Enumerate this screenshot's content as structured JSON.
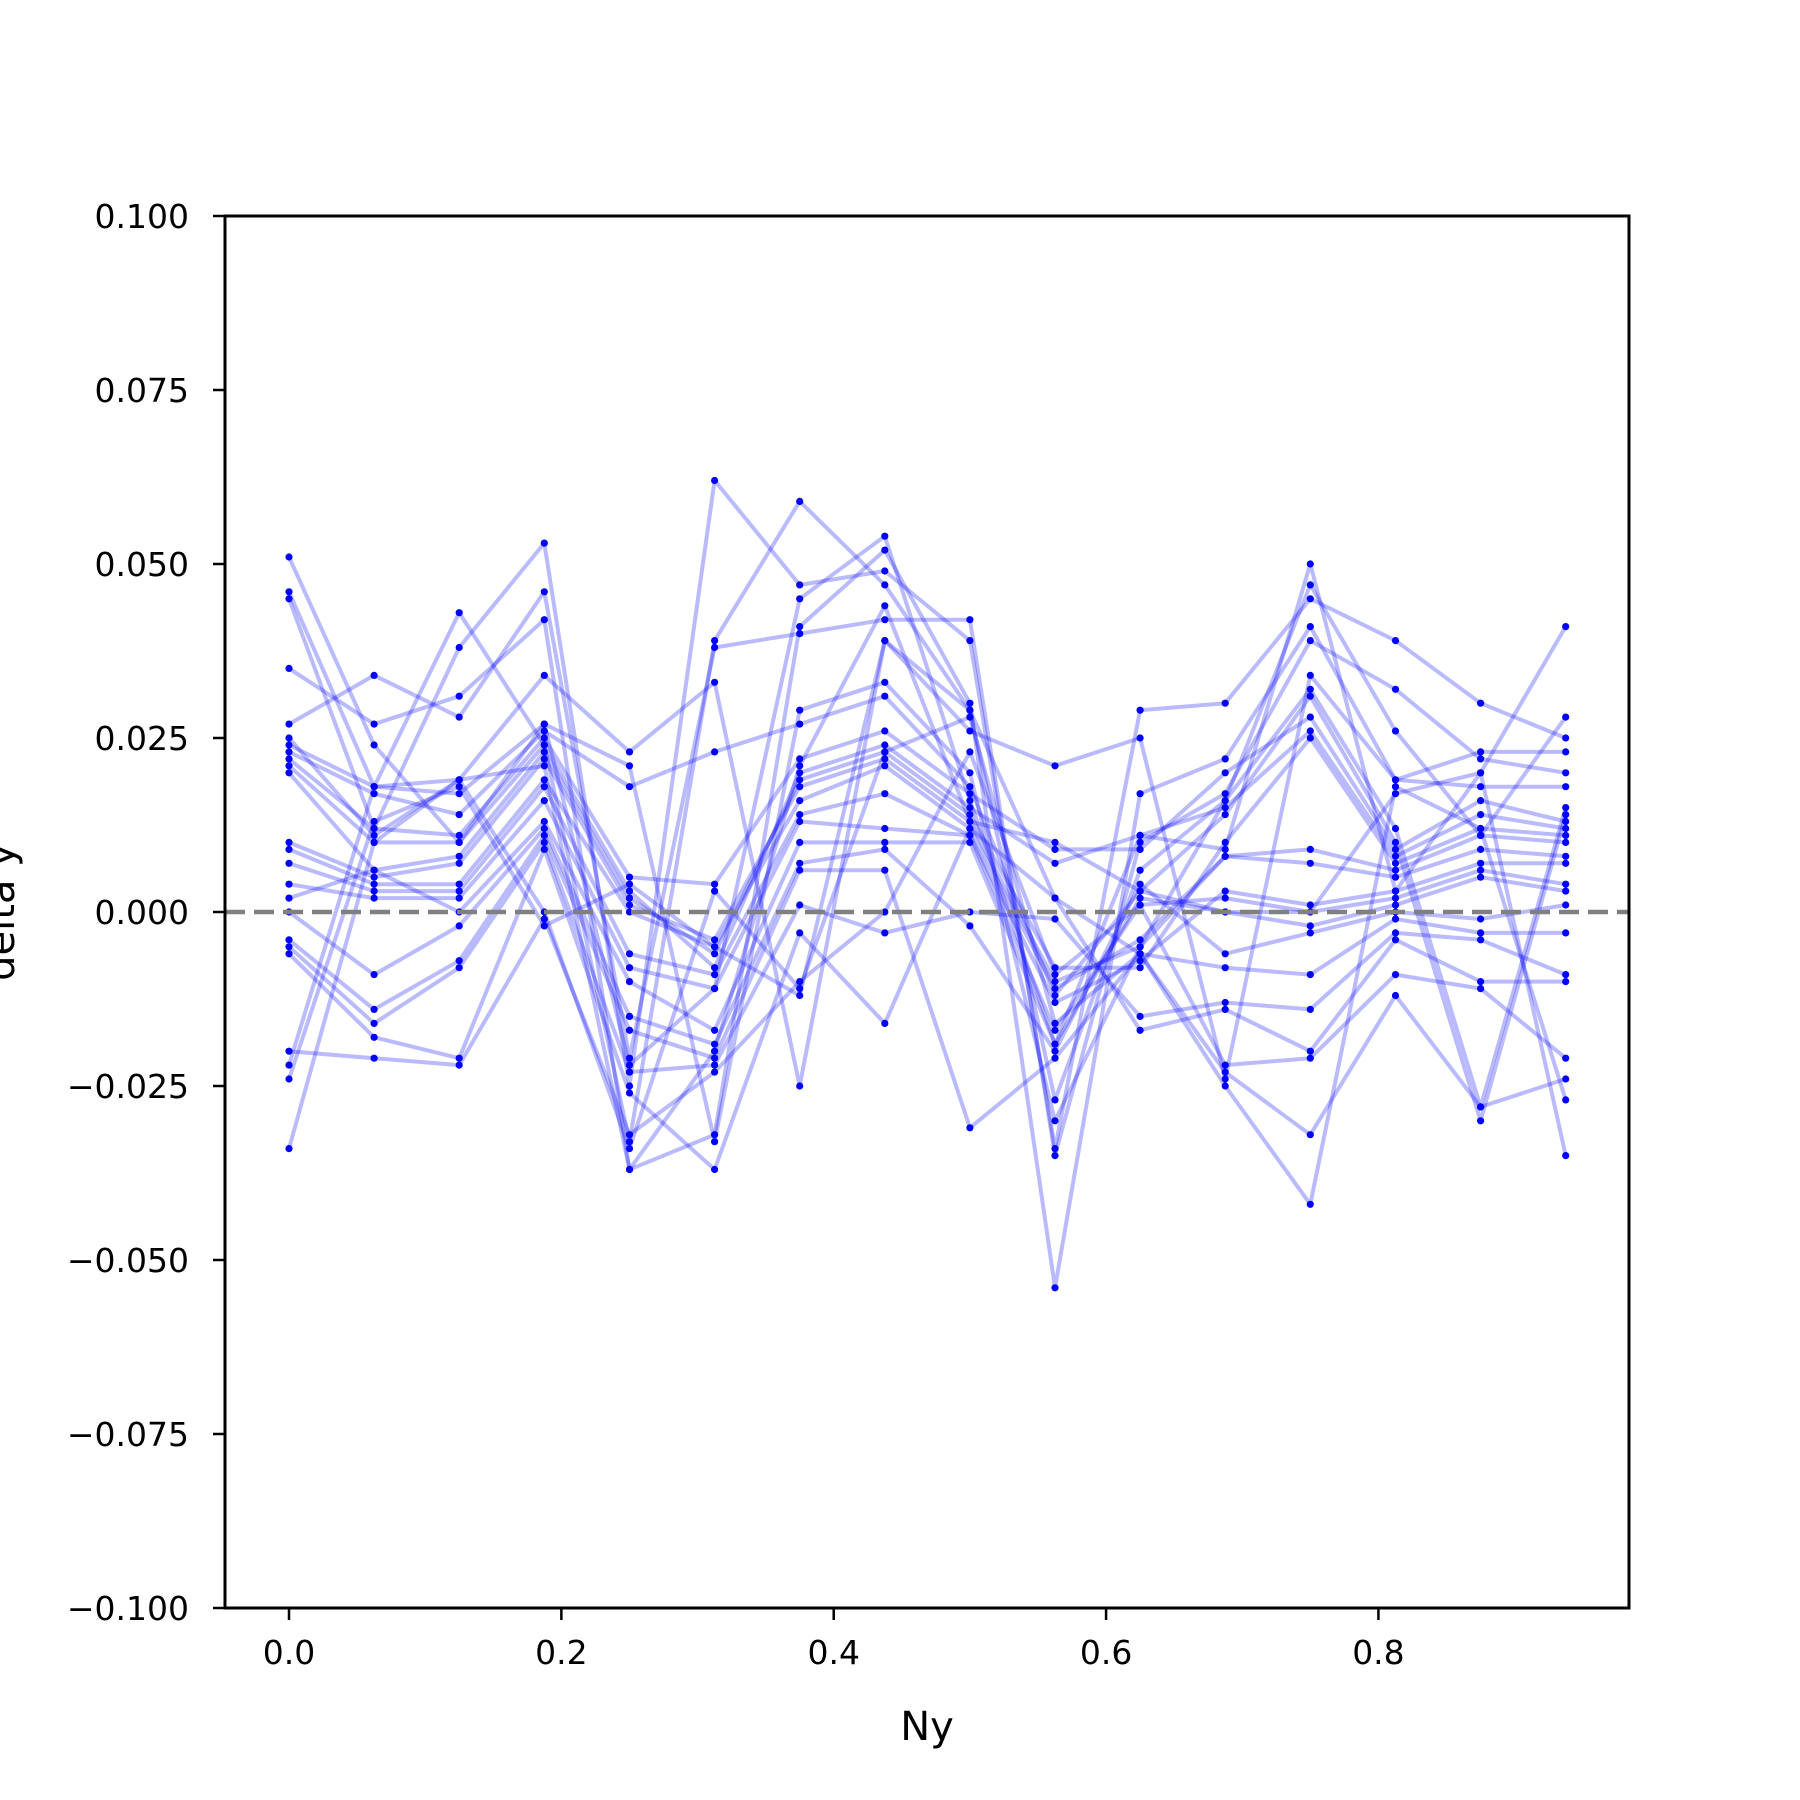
{
  "chart_data": {
    "type": "line",
    "title": "",
    "xlabel": "Ny",
    "ylabel": "delta y",
    "xlim": [
      -0.047,
      0.984
    ],
    "ylim": [
      -0.1,
      0.1
    ],
    "x_ticks": [
      0.0,
      0.2,
      0.4,
      0.6,
      0.8
    ],
    "x_tick_labels": [
      "0.0",
      "0.2",
      "0.4",
      "0.6",
      "0.8"
    ],
    "y_ticks": [
      -0.1,
      -0.075,
      -0.05,
      -0.025,
      0.0,
      0.025,
      0.05,
      0.075,
      0.1
    ],
    "y_tick_labels": [
      "−0.100",
      "−0.075",
      "−0.050",
      "−0.025",
      "0.000",
      "0.025",
      "0.050",
      "0.075",
      "0.100"
    ],
    "grid": false,
    "reference_line": {
      "y": 0.0,
      "style": "dashed",
      "color": "#808080"
    },
    "series_color": "#0000ff",
    "x": [
      0.0,
      0.0625,
      0.125,
      0.1875,
      0.25,
      0.3125,
      0.375,
      0.4375,
      0.5,
      0.5625,
      0.625,
      0.6875,
      0.75,
      0.8125,
      0.875,
      0.9375
    ],
    "series": [
      {
        "values": [
          0.051,
          0.024,
          0.01,
          0.027,
          -0.022,
          -0.011,
          0.045,
          0.054,
          0.016,
          -0.019,
          0.011,
          0.009,
          0.05,
          0.003,
          0.02,
          0.041
        ]
      },
      {
        "values": [
          0.046,
          0.018,
          0.043,
          0.024,
          -0.033,
          0.039,
          0.059,
          0.047,
          0.029,
          -0.027,
          0.006,
          0.016,
          0.047,
          0.026,
          0.011,
          0.028
        ]
      },
      {
        "values": [
          0.045,
          0.012,
          0.038,
          0.053,
          -0.025,
          0.062,
          0.047,
          0.049,
          0.039,
          -0.034,
          0.029,
          0.03,
          0.045,
          0.039,
          0.03,
          0.025
        ]
      },
      {
        "values": [
          0.035,
          0.027,
          0.031,
          0.042,
          -0.037,
          -0.032,
          0.041,
          0.052,
          0.03,
          -0.054,
          0.017,
          0.022,
          0.041,
          0.019,
          0.023,
          0.023
        ]
      },
      {
        "values": [
          0.027,
          0.034,
          0.028,
          0.046,
          -0.021,
          0.038,
          0.04,
          0.042,
          0.042,
          -0.035,
          0.01,
          0.017,
          0.039,
          0.032,
          0.022,
          0.02
        ]
      },
      {
        "values": [
          0.025,
          0.011,
          0.019,
          0.034,
          0.023,
          0.033,
          -0.025,
          0.039,
          0.026,
          0.021,
          0.025,
          -0.024,
          0.034,
          0.019,
          0.018,
          0.018
        ]
      },
      {
        "values": [
          0.024,
          0.018,
          0.017,
          0.027,
          0.021,
          -0.033,
          0.029,
          0.033,
          0.02,
          -0.03,
          -0.005,
          0.016,
          0.032,
          0.012,
          -0.028,
          0.015
        ]
      },
      {
        "values": [
          0.023,
          0.017,
          0.014,
          0.026,
          0.018,
          0.023,
          0.027,
          0.031,
          0.018,
          -0.012,
          0.003,
          0.014,
          0.031,
          0.01,
          -0.03,
          0.014
        ]
      },
      {
        "values": [
          0.022,
          0.012,
          0.011,
          0.025,
          0.005,
          0.004,
          0.022,
          0.026,
          0.017,
          0.009,
          0.009,
          0.02,
          0.028,
          0.009,
          0.016,
          0.013
        ]
      },
      {
        "values": [
          0.021,
          0.01,
          0.01,
          0.024,
          0.003,
          -0.008,
          0.02,
          0.024,
          0.015,
          0.007,
          0.011,
          0.015,
          0.026,
          0.008,
          0.014,
          0.012
        ]
      },
      {
        "values": [
          0.02,
          0.006,
          0.008,
          0.023,
          0.002,
          -0.006,
          0.019,
          0.023,
          0.014,
          -0.008,
          -0.008,
          0.01,
          0.025,
          0.007,
          0.012,
          0.011
        ]
      },
      {
        "values": [
          0.01,
          0.005,
          0.007,
          0.022,
          0.001,
          -0.004,
          0.018,
          0.022,
          0.013,
          -0.01,
          -0.005,
          0.008,
          0.009,
          0.006,
          0.011,
          0.01
        ]
      },
      {
        "values": [
          0.009,
          0.004,
          0.004,
          0.019,
          0.0,
          -0.005,
          0.016,
          0.021,
          0.012,
          -0.011,
          -0.004,
          0.008,
          0.007,
          0.005,
          0.009,
          0.008
        ]
      },
      {
        "values": [
          0.007,
          0.003,
          0.003,
          0.018,
          -0.006,
          -0.009,
          0.014,
          0.017,
          0.011,
          -0.013,
          -0.007,
          0.003,
          0.001,
          0.003,
          0.007,
          0.007
        ]
      },
      {
        "values": [
          0.004,
          0.002,
          0.002,
          0.016,
          -0.008,
          -0.011,
          0.013,
          0.012,
          0.011,
          -0.017,
          0.001,
          0.002,
          0.0,
          0.002,
          0.006,
          0.004
        ]
      },
      {
        "values": [
          0.002,
          0.006,
          0.0,
          0.013,
          -0.01,
          -0.017,
          0.01,
          0.01,
          0.01,
          -0.019,
          0.002,
          0.0,
          -0.002,
          0.001,
          0.005,
          0.003
        ]
      },
      {
        "values": [
          0.0,
          -0.009,
          -0.002,
          0.012,
          -0.015,
          -0.019,
          0.007,
          0.009,
          -0.002,
          -0.02,
          0.004,
          -0.006,
          -0.003,
          0.0,
          -0.001,
          0.001
        ]
      },
      {
        "values": [
          -0.004,
          -0.014,
          -0.007,
          0.011,
          -0.017,
          -0.021,
          0.006,
          0.006,
          -0.031,
          -0.021,
          -0.006,
          -0.008,
          -0.009,
          -0.001,
          -0.003,
          -0.003
        ]
      },
      {
        "values": [
          -0.005,
          -0.016,
          -0.008,
          0.01,
          -0.023,
          -0.022,
          0.001,
          -0.003,
          0.0,
          -0.001,
          -0.015,
          -0.013,
          -0.014,
          -0.003,
          -0.004,
          -0.009
        ]
      },
      {
        "values": [
          -0.006,
          -0.018,
          -0.021,
          0.009,
          -0.026,
          -0.037,
          -0.003,
          -0.016,
          0.012,
          0.002,
          -0.017,
          -0.014,
          -0.02,
          -0.004,
          -0.01,
          -0.01
        ]
      },
      {
        "values": [
          -0.02,
          -0.021,
          -0.022,
          -0.001,
          -0.032,
          -0.023,
          -0.01,
          0.0,
          0.023,
          -0.009,
          0.001,
          -0.022,
          -0.021,
          -0.009,
          -0.011,
          -0.021
        ]
      },
      {
        "values": [
          -0.022,
          0.018,
          0.019,
          0.0,
          -0.034,
          0.003,
          -0.011,
          0.023,
          0.028,
          -0.016,
          -0.006,
          -0.023,
          -0.032,
          -0.012,
          -0.028,
          -0.024
        ]
      },
      {
        "values": [
          -0.024,
          0.013,
          0.018,
          -0.002,
          0.004,
          -0.005,
          -0.012,
          0.039,
          0.029,
          0.002,
          -0.006,
          -0.025,
          -0.042,
          0.018,
          0.012,
          -0.027
        ]
      },
      {
        "values": [
          -0.034,
          0.01,
          0.019,
          0.021,
          -0.037,
          -0.02,
          0.021,
          0.044,
          0.013,
          0.01,
          0.003,
          0.0,
          0.0,
          0.017,
          0.02,
          -0.035
        ]
      }
    ]
  }
}
